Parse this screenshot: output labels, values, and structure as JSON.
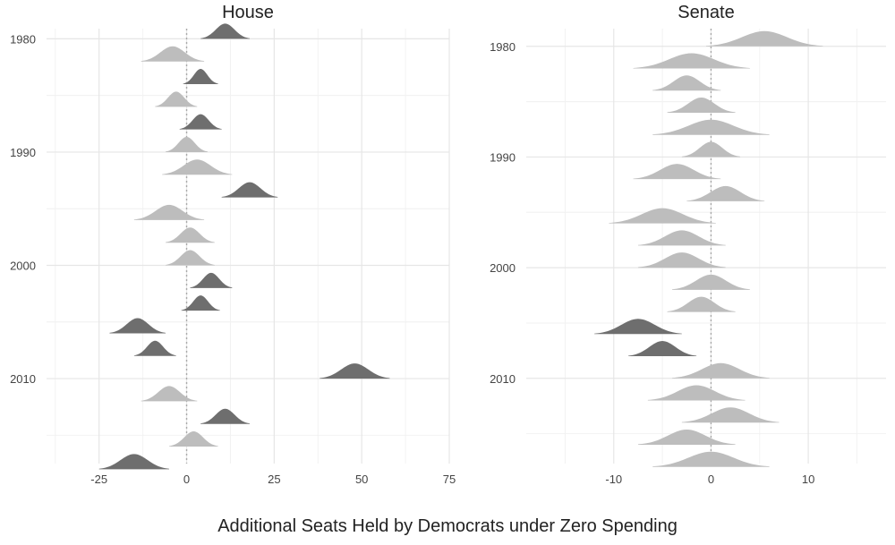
{
  "chart_data": [
    {
      "type": "area",
      "title": "House",
      "xlim": [
        -40,
        75
      ],
      "ylim": [
        2017.5,
        1979.1
      ],
      "xticks": [
        -25,
        0,
        25,
        50,
        75
      ],
      "xtick_labels": [
        "-25",
        "0",
        "25",
        "50",
        "75"
      ],
      "yticks": [
        1980,
        1990,
        2000,
        2010
      ],
      "ytick_labels": [
        "1980",
        "1990",
        "2000",
        "2010"
      ],
      "grid": true,
      "reference_line_x": 0,
      "series": [
        {
          "year": 1980,
          "center": 11,
          "spread": 7,
          "shade": "dark"
        },
        {
          "year": 1982,
          "center": -4,
          "spread": 9,
          "shade": "light"
        },
        {
          "year": 1984,
          "center": 4,
          "spread": 5,
          "shade": "dark"
        },
        {
          "year": 1986,
          "center": -3,
          "spread": 6,
          "shade": "light"
        },
        {
          "year": 1988,
          "center": 4,
          "spread": 6,
          "shade": "dark"
        },
        {
          "year": 1990,
          "center": 0,
          "spread": 6,
          "shade": "light"
        },
        {
          "year": 1992,
          "center": 3,
          "spread": 10,
          "shade": "light"
        },
        {
          "year": 1994,
          "center": 18,
          "spread": 8,
          "shade": "dark"
        },
        {
          "year": 1996,
          "center": -5,
          "spread": 10,
          "shade": "light"
        },
        {
          "year": 1998,
          "center": 1,
          "spread": 7,
          "shade": "light"
        },
        {
          "year": 2000,
          "center": 1,
          "spread": 7,
          "shade": "light"
        },
        {
          "year": 2002,
          "center": 7,
          "spread": 6,
          "shade": "dark"
        },
        {
          "year": 2004,
          "center": 4,
          "spread": 5.5,
          "shade": "dark"
        },
        {
          "year": 2006,
          "center": -14,
          "spread": 8,
          "shade": "dark"
        },
        {
          "year": 2008,
          "center": -9,
          "spread": 6,
          "shade": "dark"
        },
        {
          "year": 2010,
          "center": 48,
          "spread": 10,
          "shade": "dark"
        },
        {
          "year": 2012,
          "center": -5,
          "spread": 8,
          "shade": "light"
        },
        {
          "year": 2014,
          "center": 11,
          "spread": 7,
          "shade": "dark"
        },
        {
          "year": 2016,
          "center": 2,
          "spread": 7,
          "shade": "light"
        },
        {
          "year": 2018,
          "center": -15,
          "spread": 10,
          "shade": "dark"
        }
      ]
    },
    {
      "type": "area",
      "title": "Senate",
      "xlim": [
        -19,
        18
      ],
      "ylim": [
        2017.7,
        1978.4
      ],
      "xticks": [
        -10,
        0,
        10
      ],
      "xtick_labels": [
        "-10",
        "0",
        "10"
      ],
      "yticks": [
        1980,
        1990,
        2000,
        2010
      ],
      "ytick_labels": [
        "1980",
        "1990",
        "2000",
        "2010"
      ],
      "grid": true,
      "reference_line_x": 0,
      "series": [
        {
          "year": 1980,
          "center": 5.5,
          "spread": 6,
          "shade": "light"
        },
        {
          "year": 1982,
          "center": -2,
          "spread": 6,
          "shade": "light"
        },
        {
          "year": 1984,
          "center": -2.5,
          "spread": 3.5,
          "shade": "light"
        },
        {
          "year": 1986,
          "center": -1,
          "spread": 3.5,
          "shade": "light"
        },
        {
          "year": 1988,
          "center": 0,
          "spread": 6,
          "shade": "light"
        },
        {
          "year": 1990,
          "center": 0,
          "spread": 3,
          "shade": "light"
        },
        {
          "year": 1992,
          "center": -3.5,
          "spread": 4.5,
          "shade": "light"
        },
        {
          "year": 1994,
          "center": 1.5,
          "spread": 4,
          "shade": "light"
        },
        {
          "year": 1996,
          "center": -5,
          "spread": 5.5,
          "shade": "light"
        },
        {
          "year": 1998,
          "center": -3,
          "spread": 4.5,
          "shade": "light"
        },
        {
          "year": 2000,
          "center": -3,
          "spread": 4.5,
          "shade": "light"
        },
        {
          "year": 2002,
          "center": 0,
          "spread": 4,
          "shade": "light"
        },
        {
          "year": 2004,
          "center": -1,
          "spread": 3.5,
          "shade": "light"
        },
        {
          "year": 2006,
          "center": -7.5,
          "spread": 4.5,
          "shade": "dark"
        },
        {
          "year": 2008,
          "center": -5,
          "spread": 3.5,
          "shade": "dark"
        },
        {
          "year": 2010,
          "center": 1,
          "spread": 5,
          "shade": "light"
        },
        {
          "year": 2012,
          "center": -1.5,
          "spread": 5,
          "shade": "light"
        },
        {
          "year": 2014,
          "center": 2,
          "spread": 5,
          "shade": "light"
        },
        {
          "year": 2016,
          "center": -2.5,
          "spread": 5,
          "shade": "light"
        },
        {
          "year": 2018,
          "center": 0,
          "spread": 6,
          "shade": "light"
        }
      ]
    }
  ],
  "xlabel": "Additional Seats Held by Democrats under Zero Spending",
  "colors": {
    "dark": "#6e6e6e",
    "light": "#bdbdbd",
    "grid_major": "#e6e6e6",
    "grid_minor": "#f2f2f2",
    "zero_line": "#a9a9a9"
  }
}
